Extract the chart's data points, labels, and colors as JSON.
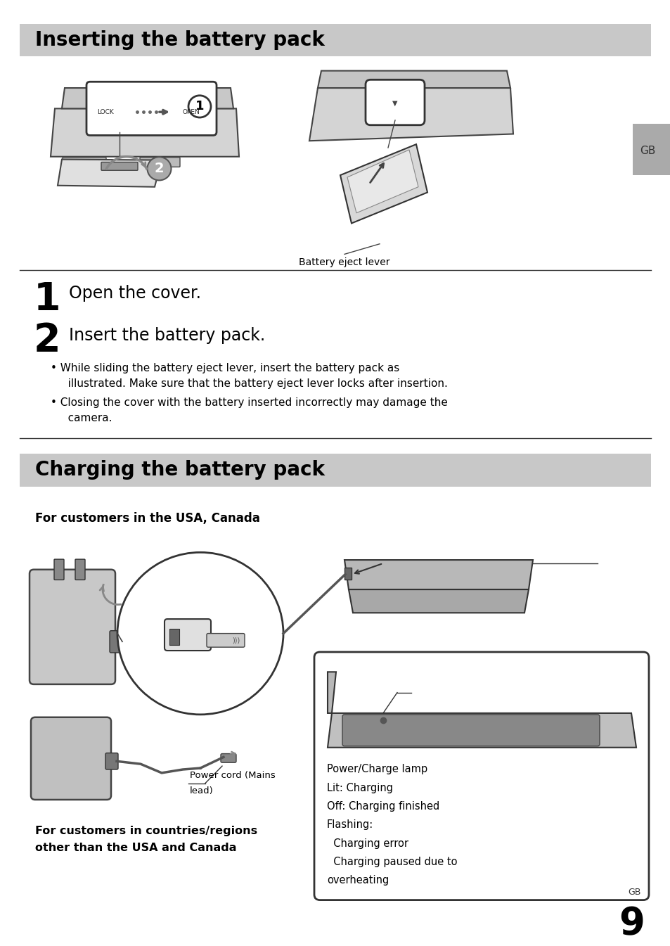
{
  "page_bg": "#ffffff",
  "header_bg": "#c8c8c8",
  "header1_text": "Inserting the battery pack",
  "header2_text": "Charging the battery pack",
  "step1_number": "1",
  "step1_text": "Open the cover.",
  "step2_number": "2",
  "step2_text": "Insert the battery pack.",
  "bullet1_line1": "• While sliding the battery eject lever, insert the battery pack as",
  "bullet1_line2": "   illustrated. Make sure that the battery eject lever locks after insertion.",
  "bullet2_line1": "• Closing the cover with the battery inserted incorrectly may damage the",
  "bullet2_line2": "   camera.",
  "for_usa_label": "For customers in the USA, Canada",
  "for_other_line1": "For customers in countries/regions",
  "for_other_line2": "other than the USA and Canada",
  "power_cord_line1": "Power cord (Mains",
  "power_cord_line2": "lead)",
  "battery_eject_label": "Battery eject lever",
  "charge_info_lines": [
    "Power/Charge lamp",
    "Lit: Charging",
    "Off: Charging finished",
    "Flashing:",
    "  Charging error",
    "  Charging paused due to",
    "overheating"
  ],
  "side_gb": "GB",
  "page_gb": "GB",
  "page_number": "9",
  "header_fontsize": 20,
  "step_number_fontsize": 40,
  "step_text_fontsize": 17,
  "body_fontsize": 11,
  "label_fontsize": 10
}
